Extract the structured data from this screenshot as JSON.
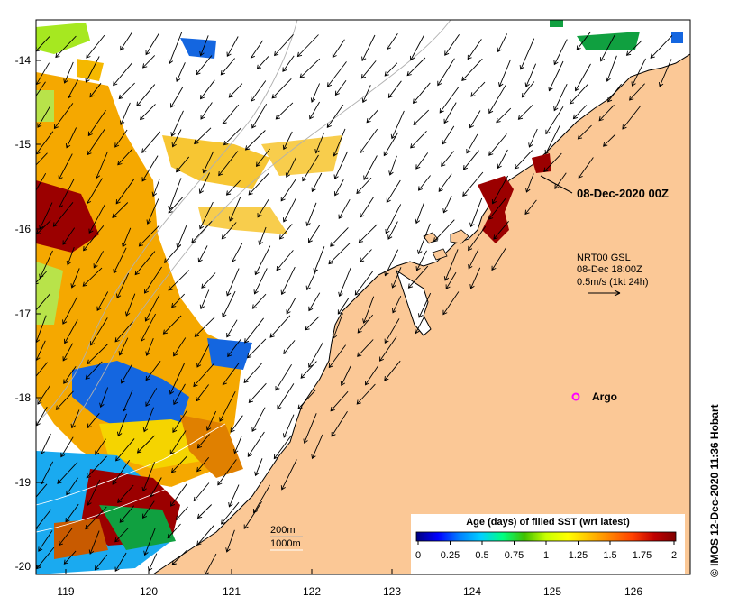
{
  "map": {
    "date_label": "08-Dec-2020 00Z",
    "current_info": [
      "NRT00 GSL",
      "08-Dec 18:00Z",
      "0.5m/s (1kt 24h)"
    ],
    "argo_label": "Argo",
    "isobath_labels": [
      "200m",
      "1000m"
    ],
    "credit": "©  IMOS 12-Dec-2020 11:36 Hobart",
    "lat_ticks": [
      "-14",
      "-15",
      "-16",
      "-17",
      "-18",
      "-19",
      "-20"
    ],
    "lon_ticks": [
      "119",
      "120",
      "121",
      "122",
      "123",
      "124",
      "125",
      "126"
    ],
    "colorbar": {
      "title": "Age (days) of filled SST (wrt latest)",
      "ticks": [
        "0",
        "0.25",
        "0.5",
        "0.75",
        "1",
        "1.25",
        "1.5",
        "1.75",
        "2"
      ],
      "colors": [
        "#00007f",
        "#0000ff",
        "#0080ff",
        "#00d0ff",
        "#00ff80",
        "#40c000",
        "#c8ff00",
        "#ffff00",
        "#ffc000",
        "#ff8000",
        "#ff4000",
        "#c00000",
        "#800000"
      ]
    },
    "colors": {
      "land": "#fbc896",
      "sea": "#ffffff",
      "argo": "#ff00ff",
      "coast": "#000000"
    }
  }
}
